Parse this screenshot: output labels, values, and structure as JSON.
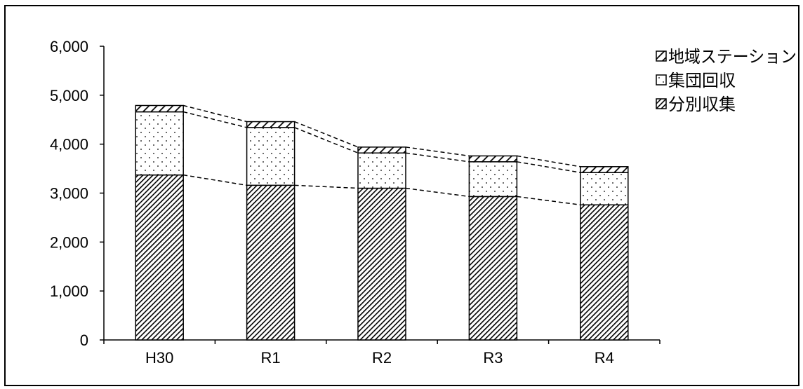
{
  "chart_data": {
    "type": "bar",
    "stacked": true,
    "categories": [
      "H30",
      "R1",
      "R2",
      "R3",
      "R4"
    ],
    "series": [
      {
        "name": "分別収集",
        "pattern": "diagonal-dense",
        "values": [
          3370,
          3160,
          3100,
          2930,
          2760
        ]
      },
      {
        "name": "集団回収",
        "pattern": "dots",
        "values": [
          1290,
          1180,
          720,
          710,
          660
        ]
      },
      {
        "name": "地域ステーション",
        "pattern": "diagonal-wide",
        "values": [
          130,
          120,
          120,
          120,
          120
        ]
      }
    ],
    "y_ticks": [
      "0",
      "1,000",
      "2,000",
      "3,000",
      "4,000",
      "5,000",
      "6,000"
    ],
    "ylim": [
      0,
      6000
    ],
    "legend_position": "top-right",
    "legend_order": [
      "地域ステーション",
      "集団回収",
      "分別収集"
    ],
    "connector_lines": "dashed",
    "colors": {
      "border": "#000000",
      "background": "#ffffff",
      "pattern": "#000000"
    }
  }
}
